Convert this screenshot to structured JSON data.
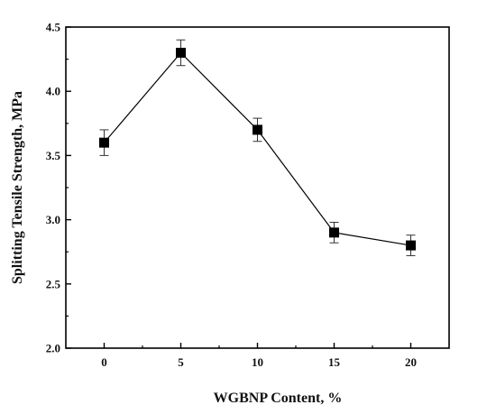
{
  "chart_data": {
    "type": "line",
    "title": "",
    "xlabel": "WGBNP Content, %",
    "ylabel": "Splitting Tensile Strength, MPa",
    "x": [
      0,
      5,
      10,
      15,
      20
    ],
    "xticks": [
      "0",
      "5",
      "10",
      "15",
      "20"
    ],
    "xlim": [
      -2.5,
      22.5
    ],
    "ylim": [
      2.0,
      4.5
    ],
    "yticks": [
      "2.0",
      "2.5",
      "3.0",
      "3.5",
      "4.0",
      "4.5"
    ],
    "series": [
      {
        "values": [
          3.6,
          4.3,
          3.7,
          2.9,
          2.8
        ],
        "errors": [
          0.1,
          0.1,
          0.09,
          0.08,
          0.08
        ],
        "marker": "square",
        "color": "#000000"
      }
    ],
    "grid": false,
    "legend": false
  }
}
